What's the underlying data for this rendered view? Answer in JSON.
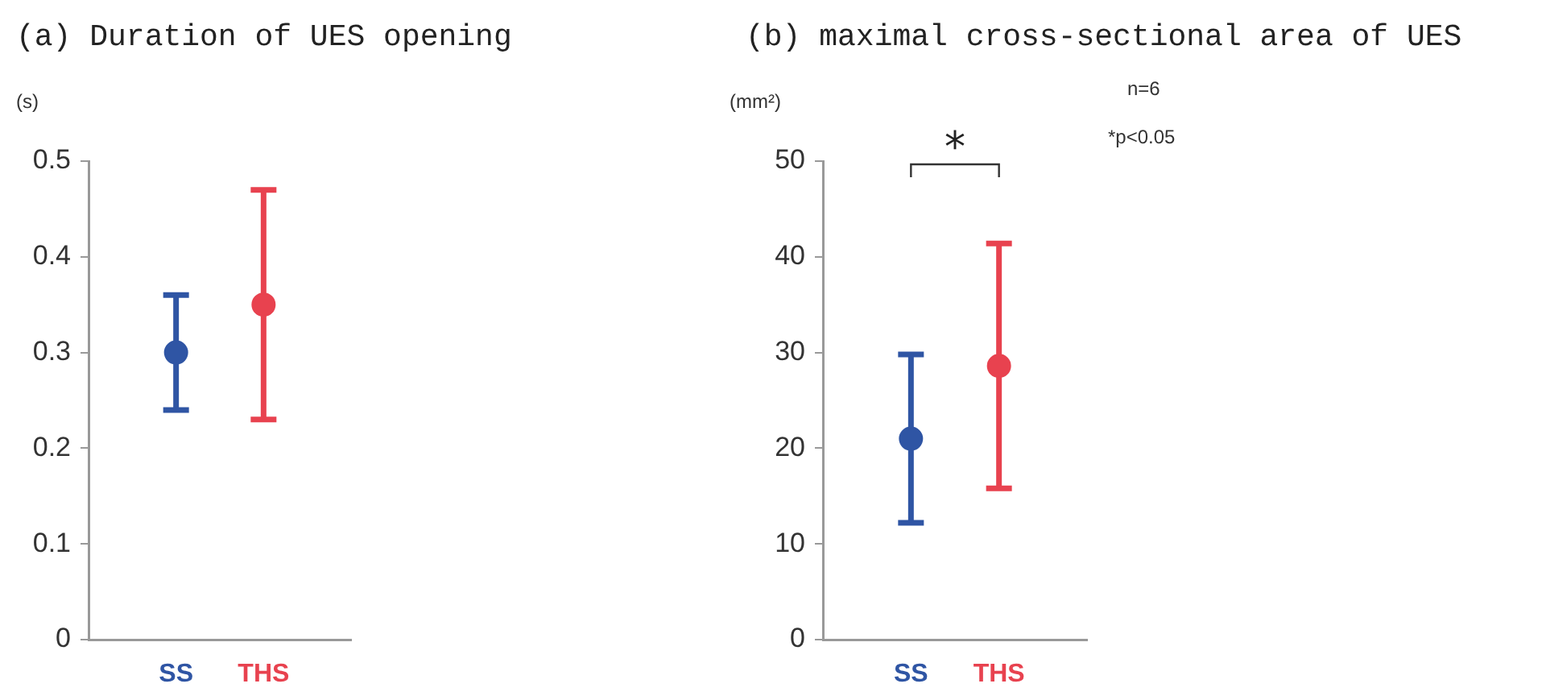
{
  "chart_data": [
    {
      "type": "scatter",
      "title": "(a) Duration of UES opening",
      "ylabel": "(s)",
      "categories": [
        "SS",
        "THS"
      ],
      "values": [
        0.3,
        0.35
      ],
      "colors": [
        "#2f55a4",
        "#e8424f"
      ],
      "errors": [
        0.06,
        0.12
      ],
      "ylim": [
        0,
        0.5
      ],
      "yticks": [
        0,
        0.1,
        0.2,
        0.3,
        0.4,
        0.5
      ],
      "marker": "circle"
    },
    {
      "type": "scatter",
      "title": "(b) maximal cross-sectional area of UES",
      "ylabel": "(mm²)",
      "categories": [
        "SS",
        "THS"
      ],
      "values": [
        21,
        28.6
      ],
      "colors": [
        "#2f55a4",
        "#e8424f"
      ],
      "errors": [
        8.8,
        12.8
      ],
      "ylim": [
        0,
        50
      ],
      "yticks": [
        0,
        10,
        20,
        30,
        40,
        50
      ],
      "marker": "circle",
      "annotations": [
        "*",
        "n=6",
        "*p<0.05"
      ]
    }
  ]
}
